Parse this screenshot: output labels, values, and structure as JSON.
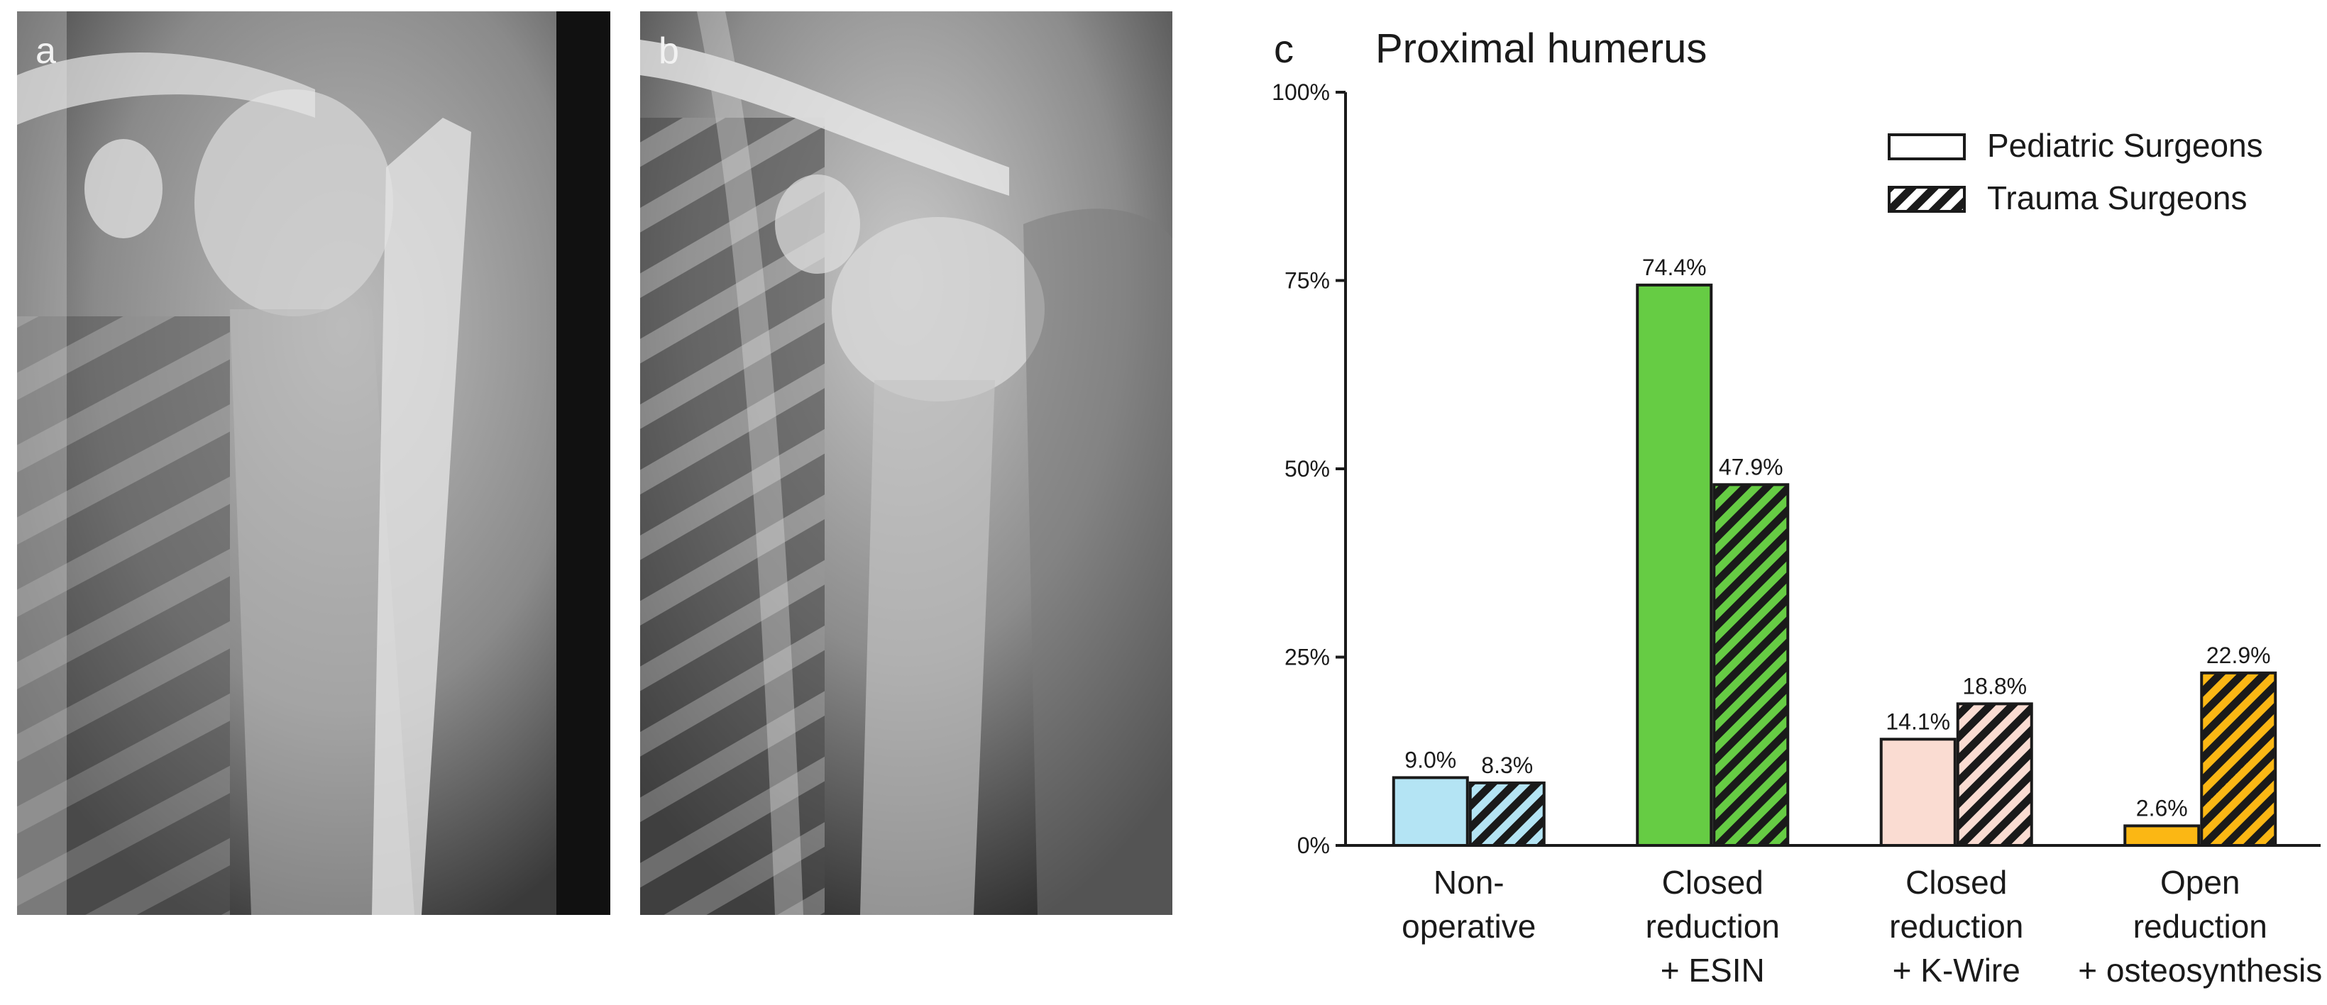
{
  "panels": {
    "a": {
      "label": "a"
    },
    "b": {
      "label": "b"
    },
    "c": {
      "label": "c"
    }
  },
  "chart_data": {
    "type": "bar",
    "title": "Proximal humerus",
    "categories": [
      [
        "Non-",
        "operative"
      ],
      [
        "Closed",
        "reduction",
        "+ ESIN"
      ],
      [
        "Closed",
        "reduction",
        "+ K-Wire"
      ],
      [
        "Open",
        "reduction",
        "+ osteosynthesis"
      ]
    ],
    "series": [
      {
        "name": "Pediatric Surgeons",
        "pattern": "solid",
        "values": [
          9.0,
          74.4,
          14.1,
          2.6
        ],
        "labels": [
          "9.0%",
          "74.4%",
          "14.1%",
          "2.6%"
        ]
      },
      {
        "name": "Trauma Surgeons",
        "pattern": "hatched",
        "values": [
          8.3,
          47.9,
          18.8,
          22.9
        ],
        "labels": [
          "8.3%",
          "47.9%",
          "18.8%",
          "22.9%"
        ]
      }
    ],
    "category_colors": [
      "#b4e4f4",
      "#66cc44",
      "#fadcd2",
      "#fbb714"
    ],
    "yticks": [
      "0%",
      "25%",
      "50%",
      "75%",
      "100%"
    ],
    "ylim": [
      0,
      100
    ],
    "legend": "top-right",
    "grid": false
  }
}
